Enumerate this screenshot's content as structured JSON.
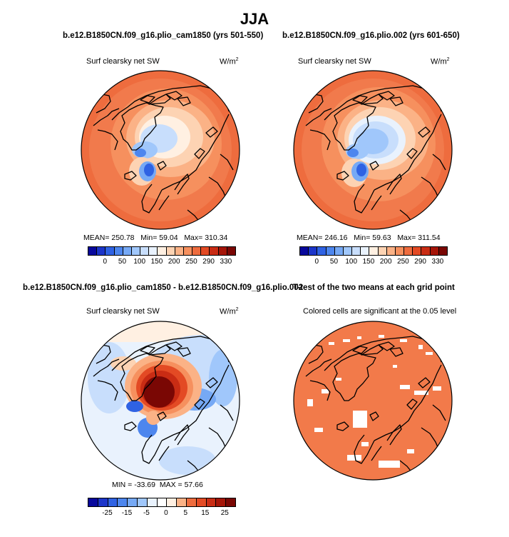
{
  "figure": {
    "title": "JJA"
  },
  "panels": [
    {
      "id": "p1",
      "title": "b.e12.B1850CN.f09_g16.plio_cam1850 (yrs 501-550)",
      "subtitle": "Surf clearsky net SW",
      "units": "W/m",
      "units_exp": "2",
      "stats": {
        "mean_label": "MEAN=",
        "mean": "250.78",
        "min_label": "Min=",
        "min": "59.04",
        "max_label": "Max=",
        "max": "310.34"
      },
      "colorbar": {
        "ticks": [
          "0",
          "50",
          "100",
          "150",
          "200",
          "250",
          "290",
          "330"
        ],
        "colors": [
          "#08089c",
          "#1c35c9",
          "#2f62e3",
          "#4d86ee",
          "#76a9f5",
          "#a0c7fb",
          "#c8defc",
          "#e9f2fd",
          "#fff0e2",
          "#fdd3b3",
          "#fbb286",
          "#f6905e",
          "#ee6c3e",
          "#e34a24",
          "#c92c14",
          "#a51508",
          "#7a0704"
        ]
      }
    },
    {
      "id": "p2",
      "title": "b.e12.B1850CN.f09_g16.plio.002 (yrs 601-650)",
      "subtitle": "Surf clearsky net SW",
      "units": "W/m",
      "units_exp": "2",
      "stats": {
        "mean_label": "MEAN=",
        "mean": "246.16",
        "min_label": "Min=",
        "min": "59.63",
        "max_label": "Max=",
        "max": "311.54"
      },
      "colorbar": {
        "ticks": [
          "0",
          "50",
          "100",
          "150",
          "200",
          "250",
          "290",
          "330"
        ],
        "colors": [
          "#08089c",
          "#1c35c9",
          "#2f62e3",
          "#4d86ee",
          "#76a9f5",
          "#a0c7fb",
          "#c8defc",
          "#e9f2fd",
          "#fff0e2",
          "#fdd3b3",
          "#fbb286",
          "#f6905e",
          "#ee6c3e",
          "#e34a24",
          "#c92c14",
          "#a51508",
          "#7a0704"
        ]
      }
    },
    {
      "id": "p3",
      "title": "b.e12.B1850CN.f09_g16.plio_cam1850 - b.e12.B1850CN.f09_g16.plio.002",
      "subtitle": "Surf clearsky net SW",
      "units": "W/m",
      "units_exp": "2",
      "stats": {
        "min_label": "MIN =",
        "min": "-33.69",
        "max_label": "MAX =",
        "max": "57.66"
      },
      "colorbar": {
        "ticks": [
          "-25",
          "-15",
          "-5",
          "0",
          "5",
          "15",
          "25"
        ],
        "colors": [
          "#08089c",
          "#1c35c9",
          "#2f62e3",
          "#4d86ee",
          "#76a9f5",
          "#a0c7fb",
          "#e9f2fd",
          "#ffffff",
          "#fff0e2",
          "#fbb286",
          "#ee6c3e",
          "#e34a24",
          "#c92c14",
          "#a51508",
          "#7a0704"
        ]
      }
    },
    {
      "id": "p4",
      "title": "T-test of the two means at each grid point",
      "subtitle": "Colored cells are significant at the 0.05 level",
      "fill_color": "#f27a4a"
    }
  ],
  "chart_data": [
    {
      "type": "heatmap",
      "title": "b.e12.B1850CN.f09_g16.plio_cam1850 (yrs 501-550)",
      "variable": "Surf clearsky net SW",
      "units": "W/m^2",
      "projection": "polar stereographic (north)",
      "stats": {
        "mean": 250.78,
        "min": 59.04,
        "max": 310.34
      },
      "colorbar_ticks": [
        0,
        50,
        100,
        150,
        200,
        250,
        290,
        330
      ]
    },
    {
      "type": "heatmap",
      "title": "b.e12.B1850CN.f09_g16.plio.002 (yrs 601-650)",
      "variable": "Surf clearsky net SW",
      "units": "W/m^2",
      "projection": "polar stereographic (north)",
      "stats": {
        "mean": 246.16,
        "min": 59.63,
        "max": 311.54
      },
      "colorbar_ticks": [
        0,
        50,
        100,
        150,
        200,
        250,
        290,
        330
      ]
    },
    {
      "type": "heatmap",
      "title": "b.e12.B1850CN.f09_g16.plio_cam1850 - b.e12.B1850CN.f09_g16.plio.002",
      "variable": "Surf clearsky net SW",
      "units": "W/m^2",
      "projection": "polar stereographic (north)",
      "stats": {
        "min": -33.69,
        "max": 57.66
      },
      "colorbar_ticks": [
        -25,
        -15,
        -5,
        0,
        5,
        15,
        25
      ]
    },
    {
      "type": "heatmap",
      "title": "T-test of the two means at each grid point",
      "note": "Colored cells are significant at the 0.05 level",
      "projection": "polar stereographic (north)"
    }
  ]
}
